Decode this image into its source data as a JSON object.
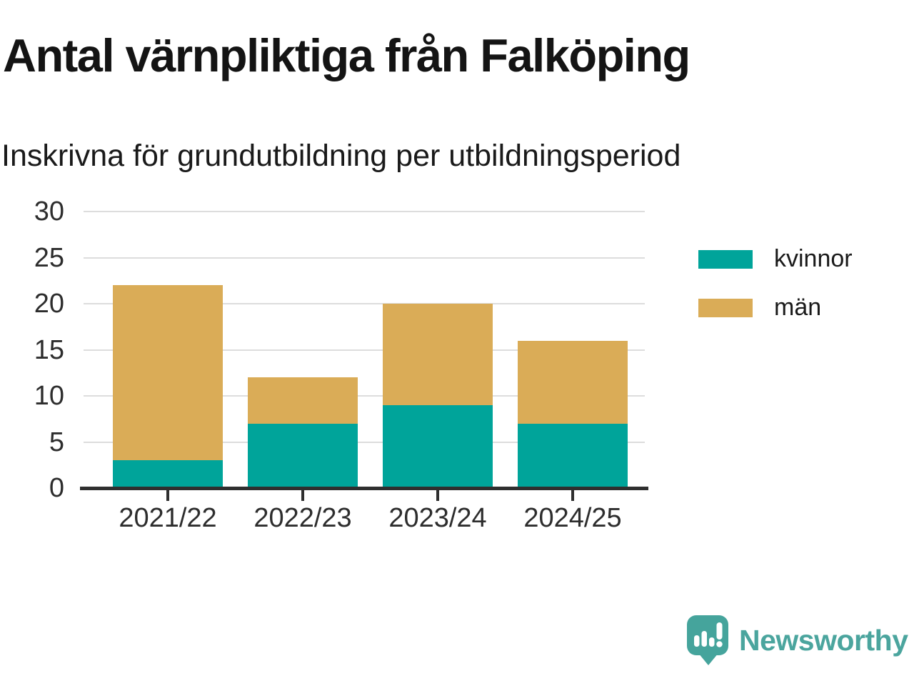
{
  "chart_data": {
    "type": "bar",
    "stacked": true,
    "title": "Antal värnpliktiga från Falköping",
    "subtitle": "Inskrivna för grundutbildning per utbildningsperiod",
    "categories": [
      "2021/22",
      "2022/23",
      "2023/24",
      "2024/25"
    ],
    "series": [
      {
        "name": "kvinnor",
        "color": "#00A49A",
        "values": [
          3,
          7,
          9,
          7
        ]
      },
      {
        "name": "män",
        "color": "#DAAC57",
        "values": [
          19,
          5,
          11,
          9
        ]
      }
    ],
    "stack_totals": [
      22,
      12,
      20,
      16
    ],
    "xlabel": "",
    "ylabel": "",
    "ylim": [
      0,
      30
    ],
    "yticks": [
      0,
      5,
      10,
      15,
      20,
      25,
      30
    ],
    "grid": true,
    "legend_position": "right-top"
  },
  "branding": {
    "name": "Newsworthy",
    "color": "#4BA59E",
    "logo_icon": "newsworthy-speech-bubble-chart-icon"
  },
  "colors": {
    "kvinnor": "#00A49A",
    "man": "#DAAC57",
    "axis": "#2F2F2F",
    "grid": "#DDDDDD",
    "text": "#1A1A1A",
    "background": "#FFFFFF"
  }
}
